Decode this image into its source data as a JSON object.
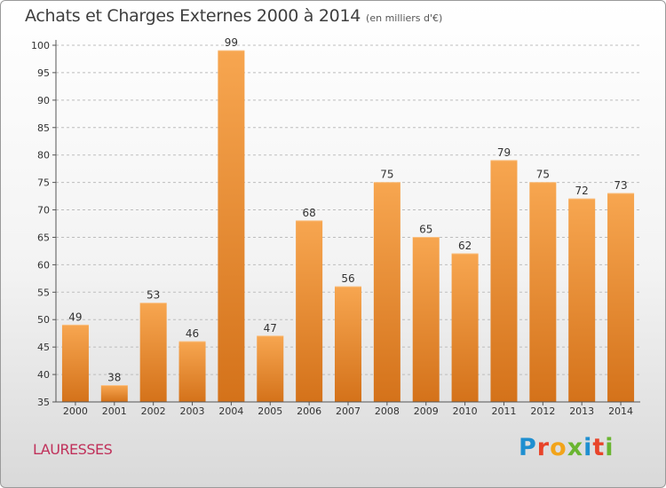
{
  "title": "Achats et Charges Externes 2000 à 2014",
  "subtitle": "(en milliers d'€)",
  "commune": "LAURESSES",
  "logo": {
    "text": "Proxiti",
    "letters": [
      {
        "char": "P",
        "color": "#1f8fd0"
      },
      {
        "char": "r",
        "color": "#e8442a"
      },
      {
        "char": "o",
        "color": "#f2a41a"
      },
      {
        "char": "x",
        "color": "#6ab531"
      },
      {
        "char": "i",
        "color": "#1f8fd0"
      },
      {
        "char": "t",
        "color": "#e8442a"
      },
      {
        "char": "i",
        "color": "#6ab531"
      }
    ]
  },
  "colors": {
    "bar_light": "#f7a650",
    "bar_dark": "#d4721a",
    "grid": "#bdbdbd",
    "axis": "#555555"
  },
  "chart_data": {
    "type": "bar",
    "title": "Achats et Charges Externes 2000 à 2014",
    "subtitle": "(en milliers d'€)",
    "categories": [
      "2000",
      "2001",
      "2002",
      "2003",
      "2004",
      "2005",
      "2006",
      "2007",
      "2008",
      "2009",
      "2010",
      "2011",
      "2012",
      "2013",
      "2014"
    ],
    "values": [
      49,
      38,
      53,
      46,
      99,
      47,
      68,
      56,
      75,
      65,
      62,
      79,
      75,
      72,
      73
    ],
    "ylim": [
      35,
      100
    ],
    "yticks": [
      35,
      40,
      45,
      50,
      55,
      60,
      65,
      70,
      75,
      80,
      85,
      90,
      95,
      100
    ],
    "grid": "horizontal dashed",
    "xlabel": "",
    "ylabel": ""
  }
}
